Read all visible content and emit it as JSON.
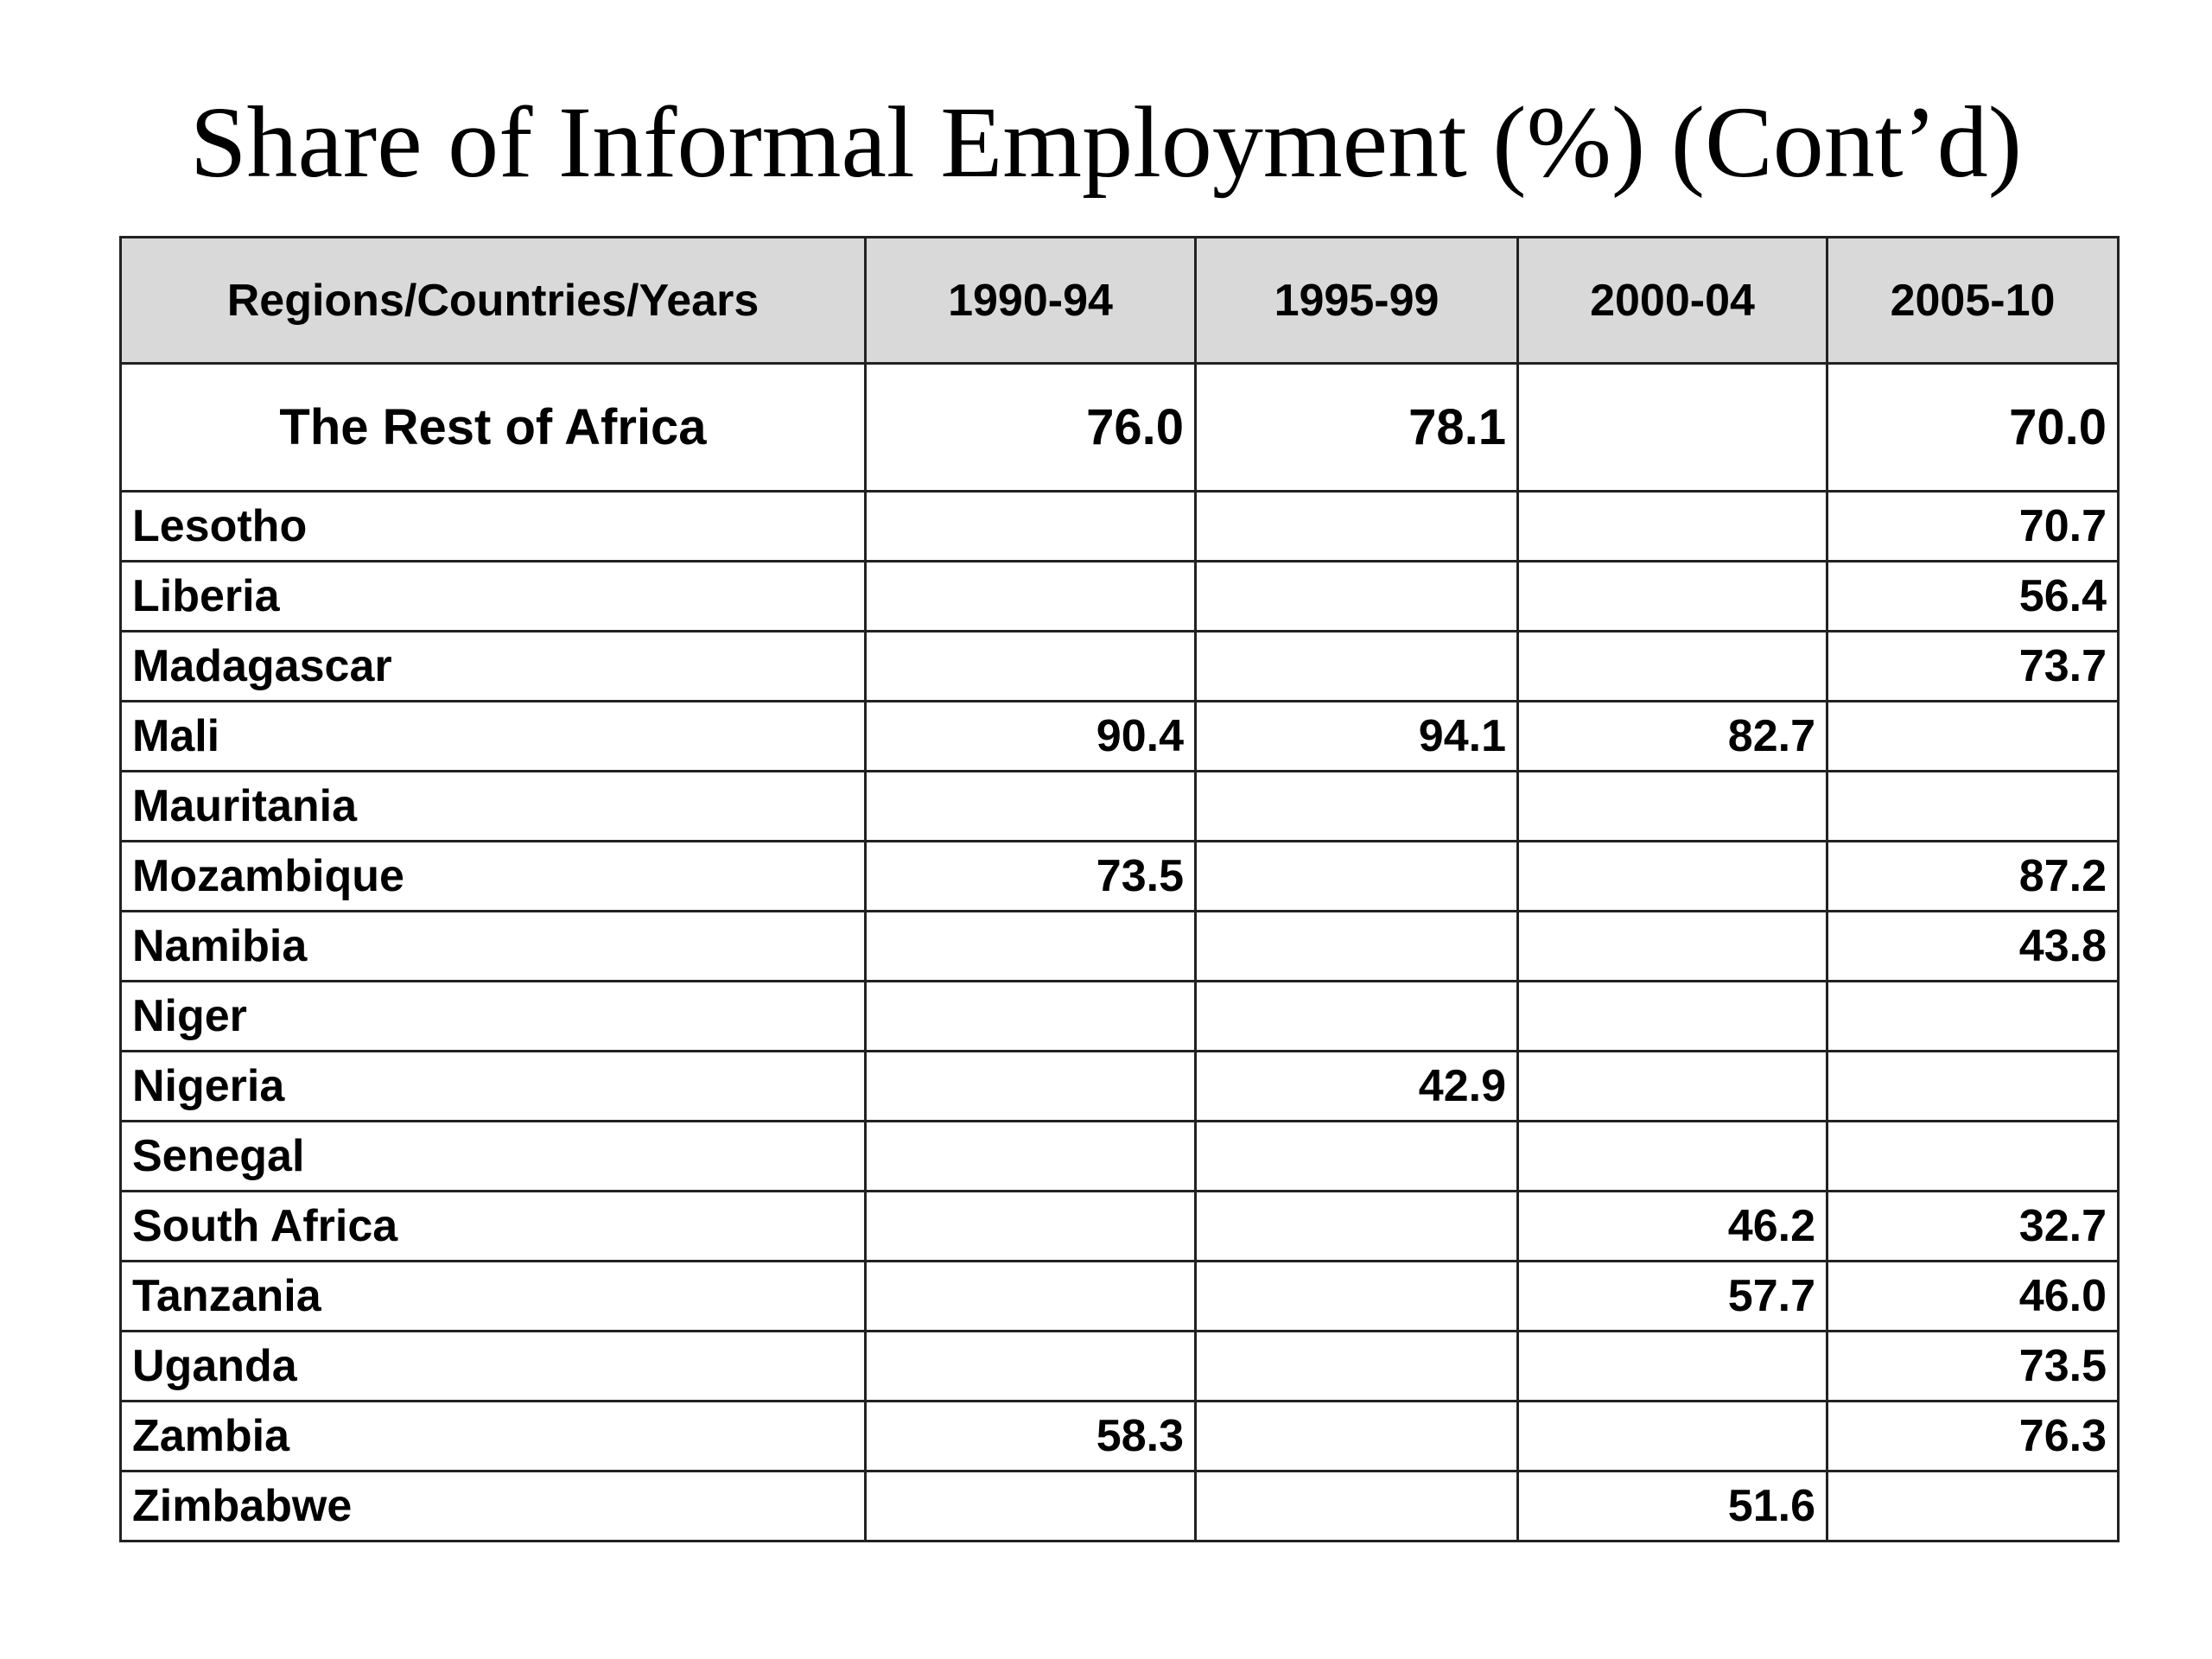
{
  "slide": {
    "title": "Share of Informal Employment (%) (Cont’d)"
  },
  "chart_data": {
    "type": "table",
    "columns": [
      "Regions/Countries/Years",
      "1990-94",
      "1995-99",
      "2000-04",
      "2005-10"
    ],
    "region_row": {
      "name": "The Rest of Africa",
      "values": [
        "76.0",
        "78.1",
        "",
        "70.0"
      ]
    },
    "rows": [
      {
        "name": "Lesotho",
        "values": [
          "",
          "",
          "",
          "70.7"
        ]
      },
      {
        "name": "Liberia",
        "values": [
          "",
          "",
          "",
          "56.4"
        ]
      },
      {
        "name": "Madagascar",
        "values": [
          "",
          "",
          "",
          "73.7"
        ]
      },
      {
        "name": "Mali",
        "values": [
          "90.4",
          "94.1",
          "82.7",
          ""
        ]
      },
      {
        "name": "Mauritania",
        "values": [
          "",
          "",
          "",
          ""
        ]
      },
      {
        "name": "Mozambique",
        "values": [
          "73.5",
          "",
          "",
          "87.2"
        ]
      },
      {
        "name": "Namibia",
        "values": [
          "",
          "",
          "",
          "43.8"
        ]
      },
      {
        "name": "Niger",
        "values": [
          "",
          "",
          "",
          ""
        ]
      },
      {
        "name": "Nigeria",
        "values": [
          "",
          "42.9",
          "",
          ""
        ]
      },
      {
        "name": "Senegal",
        "values": [
          "",
          "",
          "",
          ""
        ]
      },
      {
        "name": "South Africa",
        "values": [
          "",
          "",
          "46.2",
          "32.7"
        ]
      },
      {
        "name": "Tanzania",
        "values": [
          "",
          "",
          "57.7",
          "46.0"
        ]
      },
      {
        "name": "Uganda",
        "values": [
          "",
          "",
          "",
          "73.5"
        ]
      },
      {
        "name": "Zambia",
        "values": [
          "58.3",
          "",
          "",
          "76.3"
        ]
      },
      {
        "name": "Zimbabwe",
        "values": [
          "",
          "",
          "51.6",
          ""
        ]
      }
    ]
  }
}
